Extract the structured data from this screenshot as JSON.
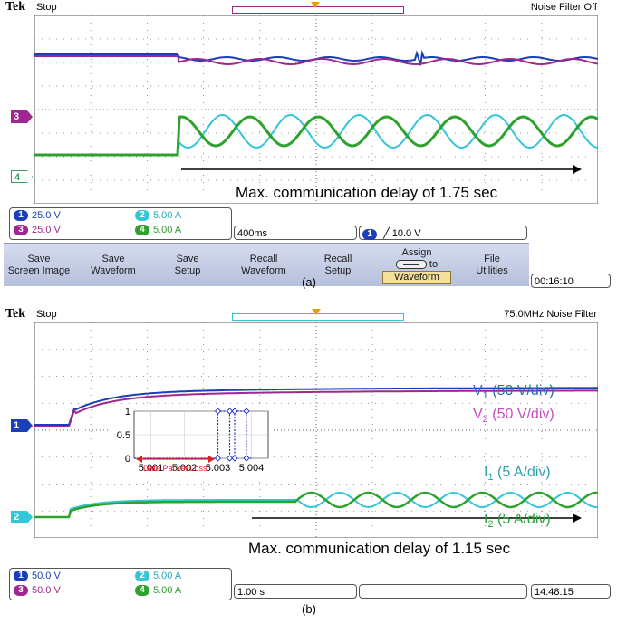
{
  "panels": [
    {
      "tek_label": "Tek",
      "status": "Stop",
      "top_right": "Noise Filter Off",
      "markers": [
        {
          "label": "3",
          "color": "#a0278f"
        },
        {
          "label": "4",
          "color": "#3a9a6a"
        }
      ],
      "readouts": {
        "ch1": {
          "num": "1",
          "value": "25.0 V",
          "color": "#1a3fb8"
        },
        "ch2": {
          "num": "2",
          "value": "5.00 A",
          "color": "#33c6d6"
        },
        "ch3": {
          "num": "3",
          "value": "25.0 V",
          "color": "#a0278f"
        },
        "ch4": {
          "num": "4",
          "value": "5.00 A",
          "color": "#2ea12e"
        }
      },
      "timebase": "400ms",
      "trigger": {
        "num": "1",
        "value": "╱ 10.0 V"
      },
      "clock": "00:16:10",
      "menu": [
        {
          "line1": "Save",
          "line2": "Screen Image"
        },
        {
          "line1": "Save",
          "line2": "Waveform"
        },
        {
          "line1": "Save",
          "line2": "Setup"
        },
        {
          "line1": "Recall",
          "line2": "Waveform"
        },
        {
          "line1": "Recall",
          "line2": "Setup"
        },
        {
          "line1": "Assign",
          "line2": "to",
          "line3": "Waveform"
        },
        {
          "line1": "File",
          "line2": "Utilities"
        }
      ],
      "annotation": "Max. communication delay of 1.75 sec",
      "caption": "(a)"
    },
    {
      "tek_label": "Tek",
      "status": "Stop",
      "top_right": "75.0MHz  Noise Filter",
      "markers": [
        {
          "label": "1",
          "color": "#1a3fb8"
        },
        {
          "label": "2",
          "color": "#33c6d6"
        }
      ],
      "readouts": {
        "ch1": {
          "num": "1",
          "value": "50.0 V",
          "color": "#1a3fb8"
        },
        "ch2": {
          "num": "2",
          "value": "5.00 A",
          "color": "#33c6d6"
        },
        "ch3": {
          "num": "3",
          "value": "50.0 V",
          "color": "#a0278f"
        },
        "ch4": {
          "num": "4",
          "value": "5.00 A",
          "color": "#2ea12e"
        }
      },
      "timebase": "1.00 s",
      "clock": "14:48:15",
      "annotation": "Max. communication delay of 1.15 sec",
      "legend": [
        {
          "base": "V",
          "sub": "1",
          "rest": " (50 V/div)",
          "color": "#2a6fb8"
        },
        {
          "base": "V",
          "sub": "2",
          "rest": " (50 V/div)",
          "color": "#c34fc4"
        },
        {
          "base": "I",
          "sub": "1",
          "rest": " (5 A/div)",
          "color": "#2fa0b0"
        },
        {
          "base": "I",
          "sub": "2",
          "rest": " (5 A/div)",
          "color": "#27a43a"
        }
      ],
      "caption": "(b)"
    }
  ],
  "chart_data": [
    {
      "type": "line",
      "panel": "a",
      "series": [
        {
          "name": "CH1",
          "color": "#1a3fb8"
        },
        {
          "name": "CH3",
          "color": "#a0278f"
        },
        {
          "name": "CH2",
          "color": "#33c6d6"
        },
        {
          "name": "CH4",
          "color": "#2ea12e"
        }
      ]
    },
    {
      "type": "line",
      "panel": "b",
      "series": [
        {
          "name": "V1",
          "color": "#1a3fb8"
        },
        {
          "name": "V2",
          "color": "#a0278f"
        },
        {
          "name": "I1",
          "color": "#33c6d6"
        },
        {
          "name": "I2",
          "color": "#2ea12e"
        }
      ]
    },
    {
      "type": "line",
      "panel": "b-inset",
      "x_ticks": [
        "5.001",
        "5.002",
        "5.003",
        "5.004"
      ],
      "y_ticks": [
        "0",
        "0.5",
        "1"
      ],
      "xlim": [
        5.0005,
        5.0045
      ],
      "ylim": [
        0,
        1
      ],
      "x": [
        5.0005,
        5.003,
        5.003,
        5.00335,
        5.00335,
        5.0035,
        5.0035,
        5.00385,
        5.00385,
        5.004
      ],
      "y": [
        0,
        0,
        1,
        1,
        0,
        0,
        1,
        1,
        0,
        0
      ],
      "annotation": "Data Packet Loss"
    }
  ]
}
